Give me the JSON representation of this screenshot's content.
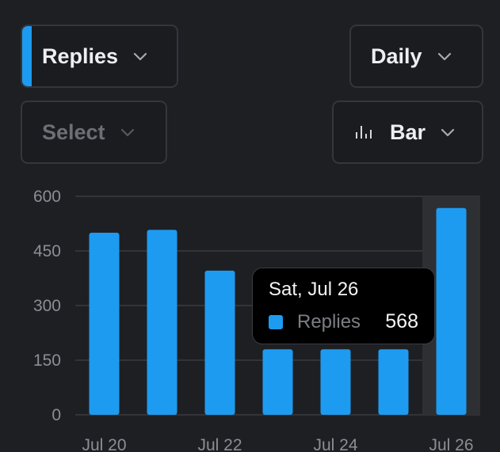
{
  "controls": {
    "metric_label": "Replies",
    "period_label": "Daily",
    "secondary_placeholder": "Select",
    "chart_type_label": "Bar"
  },
  "colors": {
    "accent": "#1d9bf0",
    "background": "#1e1f23",
    "grid": "#3a3c41"
  },
  "icons": {
    "dropdown": "chevron-down-icon",
    "chart_type": "bar-chart-icon"
  },
  "tooltip": {
    "date": "Sat, Jul 26",
    "series": "Replies",
    "value": "568"
  },
  "chart_data": {
    "type": "bar",
    "categories": [
      "Jul 20",
      "Jul 21",
      "Jul 22",
      "Jul 23",
      "Jul 24",
      "Jul 25",
      "Jul 26"
    ],
    "x_tick_labels": [
      "Jul 20",
      "Jul 22",
      "Jul 24",
      "Jul 26"
    ],
    "series": [
      {
        "name": "Replies",
        "values": [
          500,
          508,
          396,
          180,
          180,
          180,
          568
        ]
      }
    ],
    "yticks": [
      0,
      150,
      300,
      450,
      600
    ],
    "ylim": [
      0,
      600
    ],
    "highlighted_index": 6,
    "grid": true
  }
}
